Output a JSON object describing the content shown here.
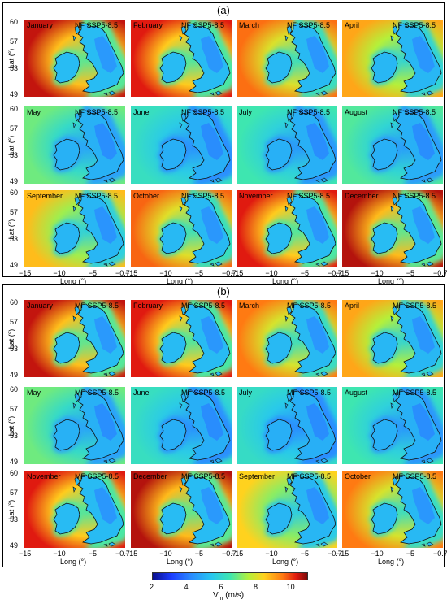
{
  "panels": [
    {
      "letter": "(a)",
      "tag": "NF SSP5-8.5",
      "rows": [
        [
          {
            "month": "January",
            "level": 0.95
          },
          {
            "month": "February",
            "level": 0.93
          },
          {
            "month": "March",
            "level": 0.85
          },
          {
            "month": "April",
            "level": 0.78
          }
        ],
        [
          {
            "month": "May",
            "level": 0.55
          },
          {
            "month": "June",
            "level": 0.47
          },
          {
            "month": "July",
            "level": 0.5
          },
          {
            "month": "August",
            "level": 0.52
          }
        ],
        [
          {
            "month": "September",
            "level": 0.75
          },
          {
            "month": "October",
            "level": 0.86
          },
          {
            "month": "November",
            "level": 0.93
          },
          {
            "month": "December",
            "level": 0.96
          }
        ]
      ]
    },
    {
      "letter": "(b)",
      "tag": "MF SSP5-8.5",
      "rows": [
        [
          {
            "month": "January",
            "level": 0.95
          },
          {
            "month": "February",
            "level": 0.93
          },
          {
            "month": "March",
            "level": 0.84
          },
          {
            "month": "April",
            "level": 0.78
          }
        ],
        [
          {
            "month": "May",
            "level": 0.55
          },
          {
            "month": "June",
            "level": 0.47
          },
          {
            "month": "July",
            "level": 0.46
          },
          {
            "month": "August",
            "level": 0.5
          }
        ],
        [
          {
            "month": "November",
            "level": 0.93
          },
          {
            "month": "December",
            "level": 0.96
          },
          {
            "month": "September",
            "level": 0.72
          },
          {
            "month": "October",
            "level": 0.84
          }
        ]
      ]
    }
  ],
  "chart_data": {
    "type": "heatmap",
    "xlabel": "Long (°)",
    "ylabel": "Lat (°)",
    "xlim": [
      -15,
      -0.7
    ],
    "ylim": [
      49,
      60
    ],
    "x_ticks": [
      "−15",
      "−10",
      "−5",
      "−0.7"
    ],
    "y_ticks": [
      "60",
      "57",
      "53",
      "49"
    ],
    "colorbar": {
      "label": "V",
      "label_sub": "m",
      "label_unit": " (m/s)",
      "range": [
        2,
        11
      ],
      "ticks": [
        "2",
        "4",
        "6",
        "8",
        "10"
      ]
    }
  }
}
